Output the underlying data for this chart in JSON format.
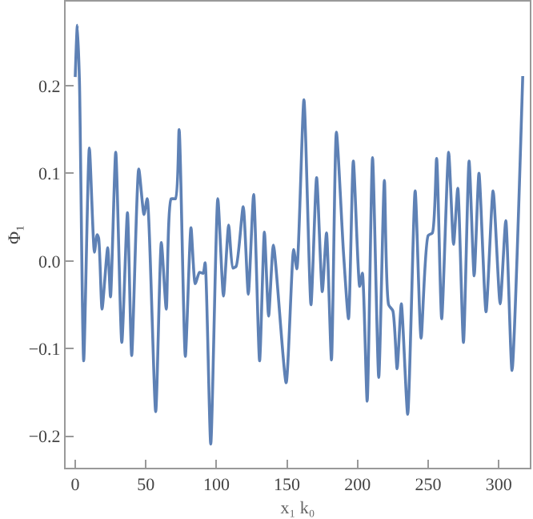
{
  "chart_data": {
    "type": "line",
    "xlabel": "x₁ k₀",
    "ylabel": "Φ₁",
    "x": [
      0,
      1.5,
      3,
      6,
      10,
      13.6,
      15.5,
      16.6,
      19,
      23,
      25,
      28.7,
      33,
      37,
      40,
      45,
      48.7,
      51,
      57,
      61,
      64.5,
      68,
      71,
      73.6,
      78,
      82,
      85,
      88,
      90.6,
      92,
      96,
      101,
      105,
      108.7,
      111.7,
      114,
      119,
      122.6,
      126.4,
      130.6,
      134,
      137,
      140.4,
      149.4,
      154.7,
      157,
      162,
      167,
      171,
      175,
      178,
      181.5,
      185,
      190,
      193.6,
      197,
      201.5,
      203.4,
      206.8,
      210.6,
      215,
      219,
      222,
      225,
      228,
      231,
      235.5,
      240.8,
      245,
      250,
      253,
      256,
      259.6,
      264.5,
      268,
      271,
      275,
      279,
      282.6,
      286,
      291,
      296,
      301,
      305,
      309.4,
      317
    ],
    "series": [
      {
        "color": "#5e81b5",
        "values": [
          0.21,
          0.269,
          0.205,
          -0.114,
          0.129,
          0.01,
          0.03,
          0.026,
          -0.055,
          0.015,
          -0.041,
          0.124,
          -0.093,
          0.055,
          -0.108,
          0.105,
          0.053,
          0.071,
          -0.172,
          0.021,
          -0.055,
          0.071,
          0.071,
          0.15,
          -0.109,
          0.038,
          -0.026,
          -0.013,
          -0.014,
          -0.002,
          -0.209,
          0.071,
          -0.04,
          0.041,
          -0.008,
          -0.006,
          0.062,
          -0.038,
          0.076,
          -0.114,
          0.033,
          -0.063,
          0.018,
          -0.139,
          0.013,
          -0.009,
          0.184,
          -0.05,
          0.095,
          -0.035,
          0.032,
          -0.113,
          0.147,
          0.01,
          -0.066,
          0.114,
          -0.029,
          -0.014,
          -0.16,
          0.118,
          -0.133,
          0.092,
          -0.05,
          -0.057,
          -0.123,
          -0.049,
          -0.175,
          0.08,
          -0.088,
          0.029,
          0.032,
          0.117,
          -0.066,
          0.124,
          0.019,
          0.083,
          -0.093,
          0.114,
          -0.017,
          0.1,
          -0.058,
          0.08,
          -0.049,
          0.046,
          -0.125,
          0.211
        ]
      }
    ],
    "xlim": [
      -6.8,
      322
    ],
    "ylim": [
      -0.236,
      0.296
    ],
    "xticks": [
      0,
      50,
      100,
      150,
      200,
      250,
      300
    ],
    "yticks": [
      {
        "value": -0.2,
        "label": "−0.2"
      },
      {
        "value": -0.1,
        "label": "−0.1"
      },
      {
        "value": 0,
        "label": "0.0"
      },
      {
        "value": 0.1,
        "label": "0.1"
      },
      {
        "value": 0.2,
        "label": "0.2"
      }
    ],
    "marker": "none",
    "line_style": "solid"
  }
}
